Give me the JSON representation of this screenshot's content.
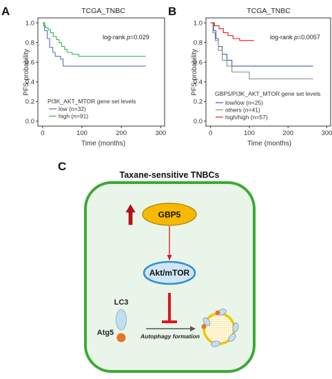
{
  "panels": {
    "a": {
      "letter": "A"
    },
    "b": {
      "letter": "B"
    },
    "c": {
      "letter": "C"
    }
  },
  "chart_data": [
    {
      "type": "line",
      "subtype": "kaplan-meier",
      "title": "TCGA_TNBC",
      "xlabel": "Time (months)",
      "ylabel": "PFS probability",
      "xlim": [
        -12,
        310
      ],
      "ylim": [
        -0.05,
        1.05
      ],
      "x_ticks": [
        "0",
        "100",
        "200",
        "300"
      ],
      "y_ticks": [
        "0.0",
        "0.2",
        "0.4",
        "0.6",
        "0.8",
        "1.0"
      ],
      "stat_prefix": "log-rank ",
      "stat_p": "p",
      "stat_value": "=0.029",
      "legend_title": "PI3K_AKT_MTOR gene set levels",
      "legend_position": "bottom-left",
      "series": [
        {
          "name": "low (n=32)",
          "color": "#5a6fb8",
          "points": [
            [
              0,
              1.0
            ],
            [
              5,
              1.0
            ],
            [
              5,
              0.92
            ],
            [
              12,
              0.92
            ],
            [
              12,
              0.84
            ],
            [
              18,
              0.84
            ],
            [
              18,
              0.75
            ],
            [
              26,
              0.75
            ],
            [
              26,
              0.7
            ],
            [
              32,
              0.7
            ],
            [
              32,
              0.66
            ],
            [
              46,
              0.66
            ],
            [
              46,
              0.63
            ],
            [
              52,
              0.63
            ],
            [
              52,
              0.56
            ],
            [
              262,
              0.56
            ]
          ]
        },
        {
          "name": "high (n=91)",
          "color": "#2db84b",
          "points": [
            [
              0,
              1.0
            ],
            [
              3,
              1.0
            ],
            [
              3,
              0.97
            ],
            [
              8,
              0.97
            ],
            [
              8,
              0.95
            ],
            [
              14,
              0.95
            ],
            [
              14,
              0.93
            ],
            [
              20,
              0.93
            ],
            [
              20,
              0.9
            ],
            [
              27,
              0.9
            ],
            [
              27,
              0.86
            ],
            [
              35,
              0.86
            ],
            [
              35,
              0.83
            ],
            [
              42,
              0.83
            ],
            [
              42,
              0.8
            ],
            [
              48,
              0.8
            ],
            [
              48,
              0.76
            ],
            [
              56,
              0.76
            ],
            [
              56,
              0.73
            ],
            [
              62,
              0.73
            ],
            [
              62,
              0.7
            ],
            [
              75,
              0.7
            ],
            [
              75,
              0.68
            ],
            [
              92,
              0.68
            ],
            [
              92,
              0.66
            ],
            [
              262,
              0.66
            ]
          ]
        }
      ]
    },
    {
      "type": "line",
      "subtype": "kaplan-meier",
      "title": "TCGA_TNBC",
      "xlabel": "Time (months)",
      "ylabel": "PFS probability",
      "xlim": [
        -12,
        310
      ],
      "ylim": [
        -0.05,
        1.05
      ],
      "x_ticks": [
        "0",
        "100",
        "200",
        "300"
      ],
      "y_ticks": [
        "0.0",
        "0.2",
        "0.4",
        "0.6",
        "0.8",
        "1.0"
      ],
      "stat_prefix": "log-rank ",
      "stat_p": "p",
      "stat_value": "=0.0057",
      "legend_title": "GBP5/PI3K_AKT_MTOR gene set levels",
      "legend_position": "bottom-left",
      "series": [
        {
          "name": "low/low (n=25)",
          "color": "#3f5db0",
          "points": [
            [
              0,
              1.0
            ],
            [
              8,
              1.0
            ],
            [
              8,
              0.92
            ],
            [
              14,
              0.92
            ],
            [
              14,
              0.84
            ],
            [
              20,
              0.84
            ],
            [
              20,
              0.76
            ],
            [
              30,
              0.76
            ],
            [
              30,
              0.68
            ],
            [
              42,
              0.68
            ],
            [
              42,
              0.62
            ],
            [
              55,
              0.62
            ],
            [
              55,
              0.56
            ],
            [
              265,
              0.56
            ]
          ]
        },
        {
          "name": "others (n=41)",
          "color": "#8a8a8a",
          "points": [
            [
              0,
              1.0
            ],
            [
              6,
              1.0
            ],
            [
              6,
              0.9
            ],
            [
              12,
              0.9
            ],
            [
              12,
              0.82
            ],
            [
              20,
              0.82
            ],
            [
              20,
              0.72
            ],
            [
              30,
              0.72
            ],
            [
              30,
              0.62
            ],
            [
              42,
              0.62
            ],
            [
              42,
              0.56
            ],
            [
              55,
              0.56
            ],
            [
              55,
              0.5
            ],
            [
              100,
              0.5
            ],
            [
              100,
              0.43
            ],
            [
              265,
              0.43
            ]
          ]
        },
        {
          "name": "high/high (n=57)",
          "color": "#e3191c",
          "points": [
            [
              0,
              1.0
            ],
            [
              10,
              1.0
            ],
            [
              10,
              0.97
            ],
            [
              22,
              0.97
            ],
            [
              22,
              0.94
            ],
            [
              33,
              0.94
            ],
            [
              33,
              0.9
            ],
            [
              45,
              0.9
            ],
            [
              45,
              0.87
            ],
            [
              58,
              0.87
            ],
            [
              58,
              0.84
            ],
            [
              75,
              0.84
            ],
            [
              75,
              0.82
            ],
            [
              112,
              0.82
            ]
          ]
        }
      ]
    }
  ],
  "diagram": {
    "title": "Taxane-sensitive TNBCs",
    "gbp5_label": "GBP5",
    "akt_label": "Akt/mTOR",
    "lc3_label": "LC3",
    "atg5_label": "Atg5",
    "process_label": "Autophagy formation",
    "colors": {
      "border": "#3aaa35",
      "background": "#e9f5e8",
      "gbp5_fill": "#f7b800",
      "akt_fill": "#2f8fd0",
      "arrow_red": "#e0141c",
      "lc3_fill": "#c5ddf0",
      "atg5_fill": "#e8742a",
      "autophagosome": "#f3c300"
    }
  }
}
